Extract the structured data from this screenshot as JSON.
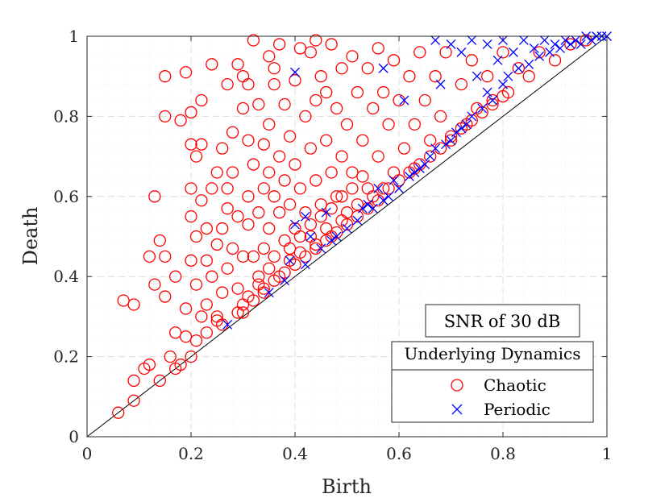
{
  "chart_data": {
    "type": "scatter",
    "title": "",
    "xlabel": "Birth",
    "ylabel": "Death",
    "xlim": [
      0,
      1
    ],
    "ylim": [
      0,
      1
    ],
    "x_ticks": [
      "0",
      "0.2",
      "0.4",
      "0.6",
      "0.8",
      "1"
    ],
    "y_ticks": [
      "0",
      "0.2",
      "0.4",
      "0.6",
      "0.8",
      "1"
    ],
    "x_tick_values": [
      0,
      0.2,
      0.4,
      0.6,
      0.8,
      1
    ],
    "y_tick_values": [
      0,
      0.2,
      0.4,
      0.6,
      0.8,
      1
    ],
    "grid": true,
    "minor_grid": true,
    "diagonal_line": true,
    "annotation": "SNR of 30 dB",
    "legend": {
      "title": "Underlying Dynamics",
      "placement": "bottom-right",
      "entries": [
        "Chaotic",
        "Periodic"
      ]
    },
    "series": [
      {
        "name": "Chaotic",
        "marker": "circle",
        "color": "#ff0000",
        "points": [
          [
            0.06,
            0.06
          ],
          [
            0.07,
            0.34
          ],
          [
            0.09,
            0.09
          ],
          [
            0.09,
            0.14
          ],
          [
            0.09,
            0.33
          ],
          [
            0.11,
            0.17
          ],
          [
            0.12,
            0.18
          ],
          [
            0.12,
            0.45
          ],
          [
            0.13,
            0.6
          ],
          [
            0.13,
            0.38
          ],
          [
            0.14,
            0.14
          ],
          [
            0.14,
            0.49
          ],
          [
            0.15,
            0.9
          ],
          [
            0.15,
            0.8
          ],
          [
            0.15,
            0.45
          ],
          [
            0.15,
            0.35
          ],
          [
            0.16,
            0.2
          ],
          [
            0.17,
            0.17
          ],
          [
            0.17,
            0.26
          ],
          [
            0.17,
            0.4
          ],
          [
            0.18,
            0.79
          ],
          [
            0.18,
            0.18
          ],
          [
            0.19,
            0.91
          ],
          [
            0.19,
            0.25
          ],
          [
            0.19,
            0.32
          ],
          [
            0.2,
            0.62
          ],
          [
            0.2,
            0.44
          ],
          [
            0.2,
            0.55
          ],
          [
            0.2,
            0.2
          ],
          [
            0.2,
            0.73
          ],
          [
            0.2,
            0.81
          ],
          [
            0.21,
            0.7
          ],
          [
            0.21,
            0.38
          ],
          [
            0.21,
            0.5
          ],
          [
            0.21,
            0.24
          ],
          [
            0.22,
            0.84
          ],
          [
            0.22,
            0.73
          ],
          [
            0.22,
            0.59
          ],
          [
            0.23,
            0.44
          ],
          [
            0.23,
            0.33
          ],
          [
            0.23,
            0.26
          ],
          [
            0.24,
            0.93
          ],
          [
            0.24,
            0.62
          ],
          [
            0.25,
            0.66
          ],
          [
            0.25,
            0.48
          ],
          [
            0.25,
            0.29
          ],
          [
            0.25,
            0.3
          ],
          [
            0.26,
            0.72
          ],
          [
            0.26,
            0.52
          ],
          [
            0.26,
            0.36
          ],
          [
            0.27,
            0.88
          ],
          [
            0.27,
            0.57
          ],
          [
            0.27,
            0.42
          ],
          [
            0.28,
            0.76
          ],
          [
            0.28,
            0.66
          ],
          [
            0.28,
            0.47
          ],
          [
            0.29,
            0.93
          ],
          [
            0.29,
            0.55
          ],
          [
            0.29,
            0.37
          ],
          [
            0.29,
            0.31
          ],
          [
            0.3,
            0.82
          ],
          [
            0.3,
            0.9
          ],
          [
            0.3,
            0.45
          ],
          [
            0.3,
            0.33
          ],
          [
            0.31,
            0.74
          ],
          [
            0.31,
            0.6
          ],
          [
            0.31,
            0.53
          ],
          [
            0.31,
            0.35
          ],
          [
            0.32,
            0.99
          ],
          [
            0.32,
            0.68
          ],
          [
            0.32,
            0.45
          ],
          [
            0.33,
            0.56
          ],
          [
            0.33,
            0.83
          ],
          [
            0.33,
            0.4
          ],
          [
            0.34,
            0.73
          ],
          [
            0.34,
            0.62
          ],
          [
            0.34,
            0.47
          ],
          [
            0.34,
            0.37
          ],
          [
            0.35,
            0.95
          ],
          [
            0.35,
            0.78
          ],
          [
            0.35,
            0.66
          ],
          [
            0.35,
            0.52
          ],
          [
            0.36,
            0.88
          ],
          [
            0.36,
            0.6
          ],
          [
            0.36,
            0.45
          ],
          [
            0.37,
            0.98
          ],
          [
            0.37,
            0.7
          ],
          [
            0.37,
            0.56
          ],
          [
            0.37,
            0.4
          ],
          [
            0.38,
            0.83
          ],
          [
            0.38,
            0.64
          ],
          [
            0.38,
            0.49
          ],
          [
            0.39,
            0.75
          ],
          [
            0.39,
            0.58
          ],
          [
            0.39,
            0.44
          ],
          [
            0.4,
            0.89
          ],
          [
            0.4,
            0.68
          ],
          [
            0.4,
            0.52
          ],
          [
            0.41,
            0.62
          ],
          [
            0.41,
            0.46
          ],
          [
            0.42,
            0.8
          ],
          [
            0.42,
            0.56
          ],
          [
            0.43,
            0.96
          ],
          [
            0.43,
            0.72
          ],
          [
            0.43,
            0.5
          ],
          [
            0.44,
            0.84
          ],
          [
            0.44,
            0.64
          ],
          [
            0.44,
            0.48
          ],
          [
            0.45,
            0.9
          ],
          [
            0.45,
            0.58
          ],
          [
            0.46,
            0.74
          ],
          [
            0.46,
            0.52
          ],
          [
            0.47,
            0.98
          ],
          [
            0.47,
            0.66
          ],
          [
            0.47,
            0.5
          ],
          [
            0.48,
            0.82
          ],
          [
            0.48,
            0.6
          ],
          [
            0.49,
            0.92
          ],
          [
            0.49,
            0.7
          ],
          [
            0.49,
            0.54
          ],
          [
            0.5,
            0.78
          ],
          [
            0.5,
            0.56
          ],
          [
            0.51,
            0.95
          ],
          [
            0.51,
            0.66
          ],
          [
            0.52,
            0.86
          ],
          [
            0.52,
            0.58
          ],
          [
            0.53,
            0.74
          ],
          [
            0.54,
            0.92
          ],
          [
            0.54,
            0.62
          ],
          [
            0.55,
            0.82
          ],
          [
            0.55,
            0.6
          ],
          [
            0.56,
            0.97
          ],
          [
            0.56,
            0.7
          ],
          [
            0.57,
            0.86
          ],
          [
            0.57,
            0.62
          ],
          [
            0.58,
            0.78
          ],
          [
            0.59,
            0.94
          ],
          [
            0.59,
            0.66
          ],
          [
            0.6,
            0.84
          ],
          [
            0.61,
            0.72
          ],
          [
            0.62,
            0.9
          ],
          [
            0.63,
            0.78
          ],
          [
            0.63,
            0.67
          ],
          [
            0.64,
            0.96
          ],
          [
            0.65,
            0.84
          ],
          [
            0.66,
            0.74
          ],
          [
            0.67,
            0.9
          ],
          [
            0.68,
            0.8
          ],
          [
            0.69,
            0.96
          ],
          [
            0.7,
            0.74
          ],
          [
            0.72,
            0.88
          ],
          [
            0.73,
            0.78
          ],
          [
            0.74,
            0.94
          ],
          [
            0.75,
            0.82
          ],
          [
            0.77,
            0.9
          ],
          [
            0.78,
            0.84
          ],
          [
            0.8,
            0.96
          ],
          [
            0.81,
            0.86
          ],
          [
            0.83,
            0.92
          ],
          [
            0.85,
            0.9
          ],
          [
            0.87,
            0.96
          ],
          [
            0.9,
            0.94
          ],
          [
            0.93,
            0.98
          ],
          [
            0.96,
            0.99
          ],
          [
            0.3,
            0.31
          ],
          [
            0.32,
            0.34
          ],
          [
            0.34,
            0.36
          ],
          [
            0.36,
            0.39
          ],
          [
            0.38,
            0.41
          ],
          [
            0.4,
            0.43
          ],
          [
            0.42,
            0.45
          ],
          [
            0.44,
            0.47
          ],
          [
            0.46,
            0.49
          ],
          [
            0.48,
            0.51
          ],
          [
            0.5,
            0.53
          ],
          [
            0.52,
            0.55
          ],
          [
            0.54,
            0.57
          ],
          [
            0.56,
            0.59
          ],
          [
            0.58,
            0.62
          ],
          [
            0.6,
            0.64
          ],
          [
            0.62,
            0.66
          ],
          [
            0.64,
            0.68
          ],
          [
            0.66,
            0.7
          ],
          [
            0.68,
            0.72
          ],
          [
            0.7,
            0.75
          ],
          [
            0.72,
            0.77
          ],
          [
            0.74,
            0.79
          ],
          [
            0.76,
            0.81
          ],
          [
            0.78,
            0.83
          ],
          [
            0.8,
            0.85
          ],
          [
            0.33,
            0.38
          ],
          [
            0.35,
            0.42
          ],
          [
            0.39,
            0.47
          ],
          [
            0.41,
            0.5
          ],
          [
            0.43,
            0.53
          ],
          [
            0.45,
            0.55
          ],
          [
            0.47,
            0.57
          ],
          [
            0.49,
            0.6
          ],
          [
            0.51,
            0.62
          ],
          [
            0.53,
            0.65
          ],
          [
            0.24,
            0.4
          ],
          [
            0.26,
            0.28
          ],
          [
            0.22,
            0.3
          ],
          [
            0.27,
            0.62
          ],
          [
            0.23,
            0.52
          ],
          [
            0.31,
            0.88
          ],
          [
            0.36,
            0.92
          ],
          [
            0.41,
            0.97
          ],
          [
            0.46,
            0.86
          ],
          [
            0.44,
            0.99
          ]
        ]
      },
      {
        "name": "Periodic",
        "marker": "x",
        "color": "#0000ff",
        "points": [
          [
            0.27,
            0.28
          ],
          [
            0.35,
            0.36
          ],
          [
            0.38,
            0.39
          ],
          [
            0.39,
            0.44
          ],
          [
            0.4,
            0.91
          ],
          [
            0.4,
            0.53
          ],
          [
            0.42,
            0.43
          ],
          [
            0.42,
            0.55
          ],
          [
            0.43,
            0.5
          ],
          [
            0.45,
            0.47
          ],
          [
            0.46,
            0.56
          ],
          [
            0.47,
            0.49
          ],
          [
            0.48,
            0.5
          ],
          [
            0.5,
            0.52
          ],
          [
            0.52,
            0.54
          ],
          [
            0.53,
            0.57
          ],
          [
            0.54,
            0.58
          ],
          [
            0.55,
            0.57
          ],
          [
            0.56,
            0.62
          ],
          [
            0.57,
            0.59
          ],
          [
            0.57,
            0.92
          ],
          [
            0.58,
            0.6
          ],
          [
            0.59,
            0.64
          ],
          [
            0.6,
            0.62
          ],
          [
            0.61,
            0.84
          ],
          [
            0.62,
            0.65
          ],
          [
            0.63,
            0.66
          ],
          [
            0.64,
            0.67
          ],
          [
            0.65,
            0.68
          ],
          [
            0.66,
            0.7
          ],
          [
            0.67,
            0.99
          ],
          [
            0.67,
            0.72
          ],
          [
            0.68,
            0.88
          ],
          [
            0.69,
            0.73
          ],
          [
            0.7,
            0.98
          ],
          [
            0.7,
            0.74
          ],
          [
            0.71,
            0.76
          ],
          [
            0.72,
            0.96
          ],
          [
            0.72,
            0.77
          ],
          [
            0.73,
            0.78
          ],
          [
            0.74,
            0.99
          ],
          [
            0.74,
            0.8
          ],
          [
            0.75,
            0.9
          ],
          [
            0.76,
            0.82
          ],
          [
            0.77,
            0.98
          ],
          [
            0.77,
            0.86
          ],
          [
            0.78,
            0.84
          ],
          [
            0.79,
            0.94
          ],
          [
            0.8,
            0.88
          ],
          [
            0.8,
            0.99
          ],
          [
            0.81,
            0.9
          ],
          [
            0.82,
            0.96
          ],
          [
            0.83,
            0.92
          ],
          [
            0.84,
            0.99
          ],
          [
            0.85,
            0.93
          ],
          [
            0.86,
            0.97
          ],
          [
            0.87,
            0.95
          ],
          [
            0.88,
            0.99
          ],
          [
            0.89,
            0.96
          ],
          [
            0.9,
            0.98
          ],
          [
            0.91,
            0.97
          ],
          [
            0.92,
            0.99
          ],
          [
            0.93,
            0.98
          ],
          [
            0.94,
            0.99
          ],
          [
            0.95,
            0.98
          ],
          [
            0.96,
            1.0
          ],
          [
            0.97,
            0.99
          ],
          [
            0.98,
            1.0
          ],
          [
            0.99,
            1.0
          ],
          [
            1.0,
            1.0
          ]
        ]
      }
    ]
  }
}
